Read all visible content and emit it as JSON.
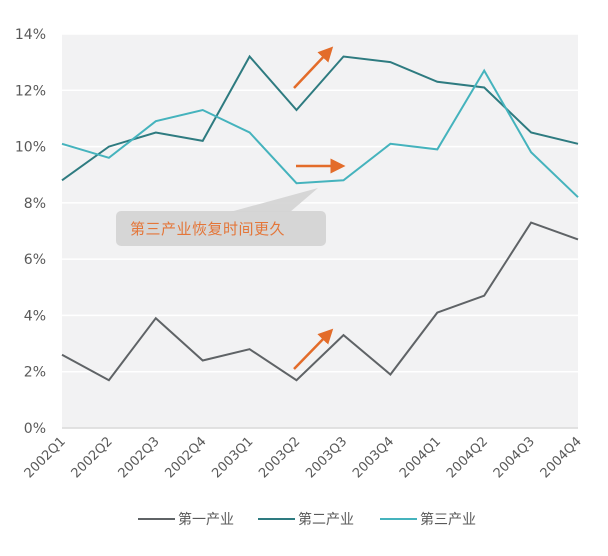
{
  "chart_data": {
    "type": "line",
    "title": "",
    "xlabel": "",
    "ylabel": "",
    "categories": [
      "2002Q1",
      "2002Q2",
      "2002Q3",
      "2002Q4",
      "2003Q1",
      "2003Q2",
      "2003Q3",
      "2003Q4",
      "2004Q1",
      "2004Q2",
      "2004Q3",
      "2004Q4"
    ],
    "series": [
      {
        "name": "第一产业",
        "color": "#5f6366",
        "values": [
          2.6,
          1.7,
          3.9,
          2.4,
          2.8,
          1.7,
          3.3,
          1.9,
          4.1,
          4.7,
          7.3,
          6.7
        ]
      },
      {
        "name": "第二产业",
        "color": "#2e7b80",
        "values": [
          8.8,
          10.0,
          10.5,
          10.2,
          13.2,
          11.3,
          13.2,
          13.0,
          12.3,
          12.1,
          10.5,
          10.1
        ]
      },
      {
        "name": "第三产业",
        "color": "#45b3bd",
        "values": [
          10.1,
          9.6,
          10.9,
          11.3,
          10.5,
          8.7,
          8.8,
          10.1,
          9.9,
          12.7,
          9.8,
          8.2
        ]
      }
    ],
    "ylim": [
      0,
      14
    ],
    "yticks": [
      "0%",
      "2%",
      "4%",
      "6%",
      "8%",
      "10%",
      "12%",
      "14%"
    ],
    "grid": true,
    "legend_position": "bottom",
    "annotations": [
      {
        "type": "callout",
        "text": "第三产业恢复时间更久",
        "color": "#e36c2a"
      },
      {
        "type": "arrow",
        "direction": "up-right",
        "near": "第二产业 2003Q2-2003Q3"
      },
      {
        "type": "arrow",
        "direction": "right",
        "near": "第三产业 2003Q2-2003Q3"
      },
      {
        "type": "arrow",
        "direction": "up-right",
        "near": "第一产业 2003Q2-2003Q3"
      }
    ]
  },
  "callout": {
    "text": "第三产业恢复时间更久"
  },
  "legend": [
    {
      "label": "第一产业",
      "color": "#5f6366"
    },
    {
      "label": "第二产业",
      "color": "#2e7b80"
    },
    {
      "label": "第三产业",
      "color": "#45b3bd"
    }
  ],
  "colors": {
    "plot_bg": "#f2f2f3",
    "grid": "#ffffff",
    "accent": "#e36c2a",
    "text": "#595959"
  }
}
